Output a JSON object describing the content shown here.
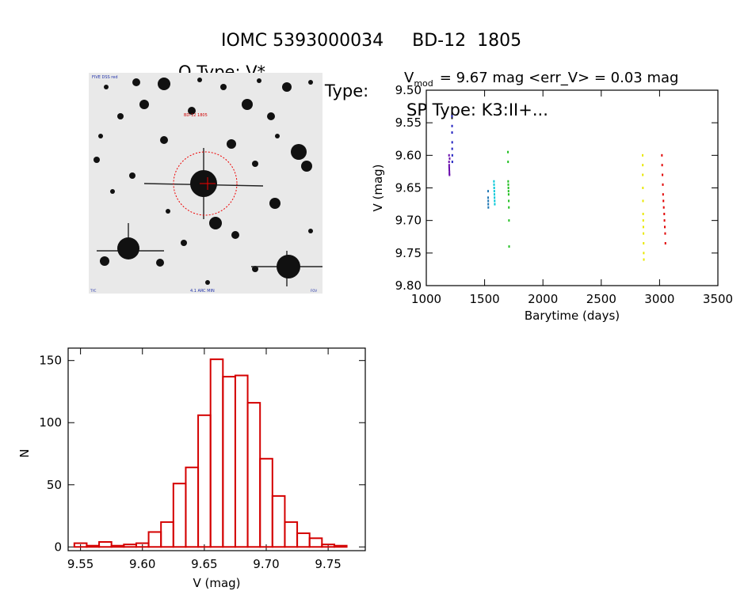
{
  "header": {
    "object_id": "IOMC 5393000034",
    "catalog_name": "BD-12  1805",
    "otype": "O Type: V*",
    "vartype": "Var Type:",
    "sptype": "SP Type: K3:II+..."
  },
  "finder": {
    "corner_label": "FIVE DSS red",
    "target_label": "BD-12 1805",
    "scale_label": "4.1 ARC MIN",
    "left_bottom_label": "TYC",
    "right_bottom_label": "FOV"
  },
  "chart_data": [
    {
      "type": "scatter",
      "title_prefix": "V",
      "title_subscript": "mod",
      "title_rest": "= 9.67 mag <err_V> = 0.03 mag",
      "xlabel": "Barytime (days)",
      "ylabel": "V (mag)",
      "xlim": [
        1000,
        3500
      ],
      "ylim": [
        9.5,
        9.8
      ],
      "y_inverted": true,
      "xticks": [
        1000,
        1500,
        2000,
        2500,
        3000,
        3500
      ],
      "yticks": [
        "9.50",
        "9.55",
        "9.60",
        "9.65",
        "9.70",
        "9.75",
        "9.80"
      ],
      "series": [
        {
          "color": "#6a0dad",
          "x": [
            1195,
            1195,
            1196,
            1196,
            1197,
            1197,
            1198,
            1198,
            1199,
            1200
          ],
          "y": [
            9.6,
            9.61,
            9.615,
            9.618,
            9.62,
            9.622,
            9.625,
            9.628,
            9.63,
            9.605
          ]
        },
        {
          "color": "#2020c0",
          "x": [
            1220,
            1221,
            1221,
            1222,
            1222,
            1223,
            1223
          ],
          "y": [
            9.54,
            9.555,
            9.565,
            9.58,
            9.59,
            9.6,
            9.61
          ]
        },
        {
          "color": "#1f77b4",
          "x": [
            1530,
            1530,
            1531,
            1531,
            1532
          ],
          "y": [
            9.655,
            9.665,
            9.67,
            9.675,
            9.68
          ]
        },
        {
          "color": "#00c8d8",
          "x": [
            1580,
            1581,
            1582,
            1583,
            1584,
            1585,
            1586,
            1587
          ],
          "y": [
            9.64,
            9.645,
            9.65,
            9.655,
            9.66,
            9.665,
            9.67,
            9.675
          ]
        },
        {
          "color": "#22c022",
          "x": [
            1700,
            1701,
            1702,
            1703,
            1704,
            1705,
            1706,
            1707,
            1708,
            1709,
            1710
          ],
          "y": [
            9.595,
            9.61,
            9.64,
            9.645,
            9.65,
            9.655,
            9.66,
            9.67,
            9.68,
            9.7,
            9.74
          ]
        },
        {
          "color": "#e8e800",
          "x": [
            2855,
            2856,
            2856,
            2857,
            2858,
            2859,
            2860,
            2861,
            2862,
            2863,
            2864,
            2865
          ],
          "y": [
            9.6,
            9.615,
            9.63,
            9.65,
            9.67,
            9.69,
            9.7,
            9.71,
            9.72,
            9.735,
            9.75,
            9.76
          ]
        },
        {
          "color": "#e00000",
          "x": [
            3020,
            3022,
            3025,
            3028,
            3030,
            3033,
            3036,
            3040,
            3042,
            3045,
            3048,
            3050
          ],
          "y": [
            9.6,
            9.615,
            9.63,
            9.645,
            9.66,
            9.67,
            9.68,
            9.69,
            9.7,
            9.71,
            9.72,
            9.735
          ]
        }
      ]
    },
    {
      "type": "bar",
      "style": "histogram-step",
      "xlabel": "V (mag)",
      "ylabel": "N",
      "xlim": [
        9.54,
        9.78
      ],
      "ylim": [
        -3,
        160
      ],
      "xticks": [
        "9.55",
        "9.60",
        "9.65",
        "9.70",
        "9.75"
      ],
      "yticks": [
        "0",
        "50",
        "100",
        "150"
      ],
      "bin_width": 0.01,
      "bins_start": [
        9.545,
        9.555,
        9.565,
        9.575,
        9.585,
        9.595,
        9.605,
        9.615,
        9.625,
        9.635,
        9.645,
        9.655,
        9.665,
        9.675,
        9.685,
        9.695,
        9.705,
        9.715,
        9.725,
        9.735,
        9.745,
        9.755
      ],
      "counts": [
        3,
        1,
        4,
        1,
        2,
        3,
        12,
        20,
        51,
        64,
        106,
        151,
        137,
        138,
        116,
        71,
        41,
        20,
        11,
        7,
        2,
        1
      ],
      "color": "#d40000"
    }
  ]
}
